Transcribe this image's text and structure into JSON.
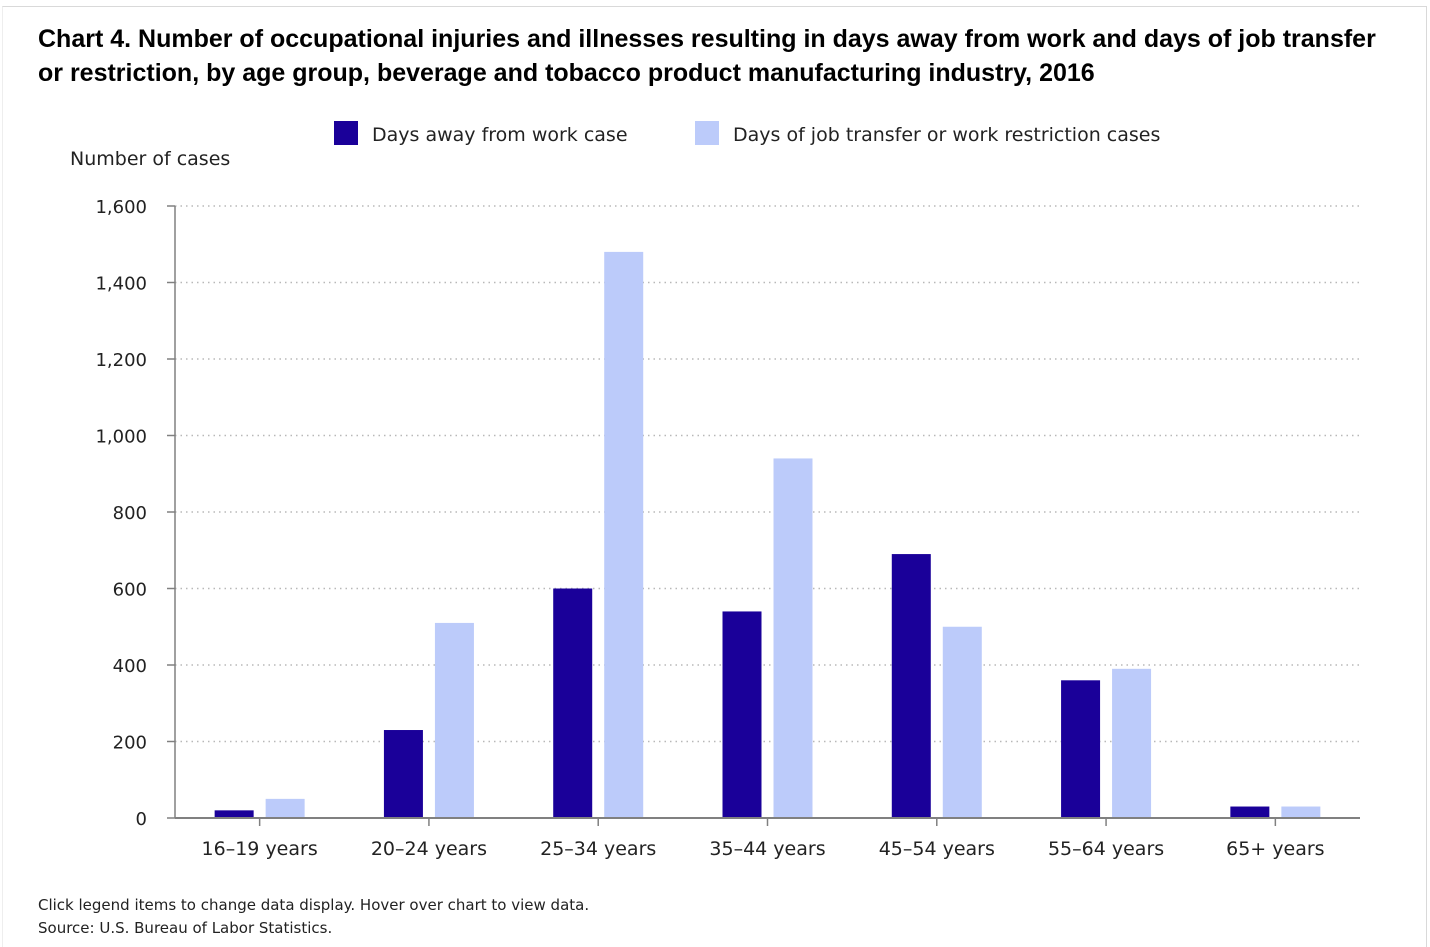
{
  "chart_data": {
    "type": "bar",
    "title": "Chart 4. Number of occupational injuries and illnesses resulting in days away from work and days of job transfer or restriction, by age group, beverage and tobacco product manufacturing industry, 2016",
    "ylabel": "Number of cases",
    "xlabel": "",
    "categories": [
      "16–19 years",
      "20–24 years",
      "25–34 years",
      "35–44 years",
      "45–54 years",
      "55–64 years",
      "65+ years"
    ],
    "series": [
      {
        "name": "Days away from work case",
        "color": "#1a0099",
        "values": [
          20,
          230,
          600,
          540,
          690,
          360,
          30
        ]
      },
      {
        "name": "Days of job transfer or work restriction cases",
        "color": "#bccbfa",
        "values": [
          50,
          510,
          1480,
          940,
          500,
          390,
          30
        ]
      }
    ],
    "ylim": [
      0,
      1600
    ],
    "yticks": [
      "0",
      "200",
      "400",
      "600",
      "800",
      "1,000",
      "1,200",
      "1,400",
      "1,600"
    ],
    "ytick_values": [
      0,
      200,
      400,
      600,
      800,
      1000,
      1200,
      1400,
      1600
    ],
    "grid": "horizontal dotted",
    "legend": "top-center"
  },
  "footer": {
    "note": "Click legend items to change data display. Hover over chart to view data.",
    "source": "Source: U.S. Bureau of Labor Statistics."
  },
  "colors": {
    "axis": "#808080",
    "grid": "#b8b8b8",
    "text": "#222222"
  }
}
